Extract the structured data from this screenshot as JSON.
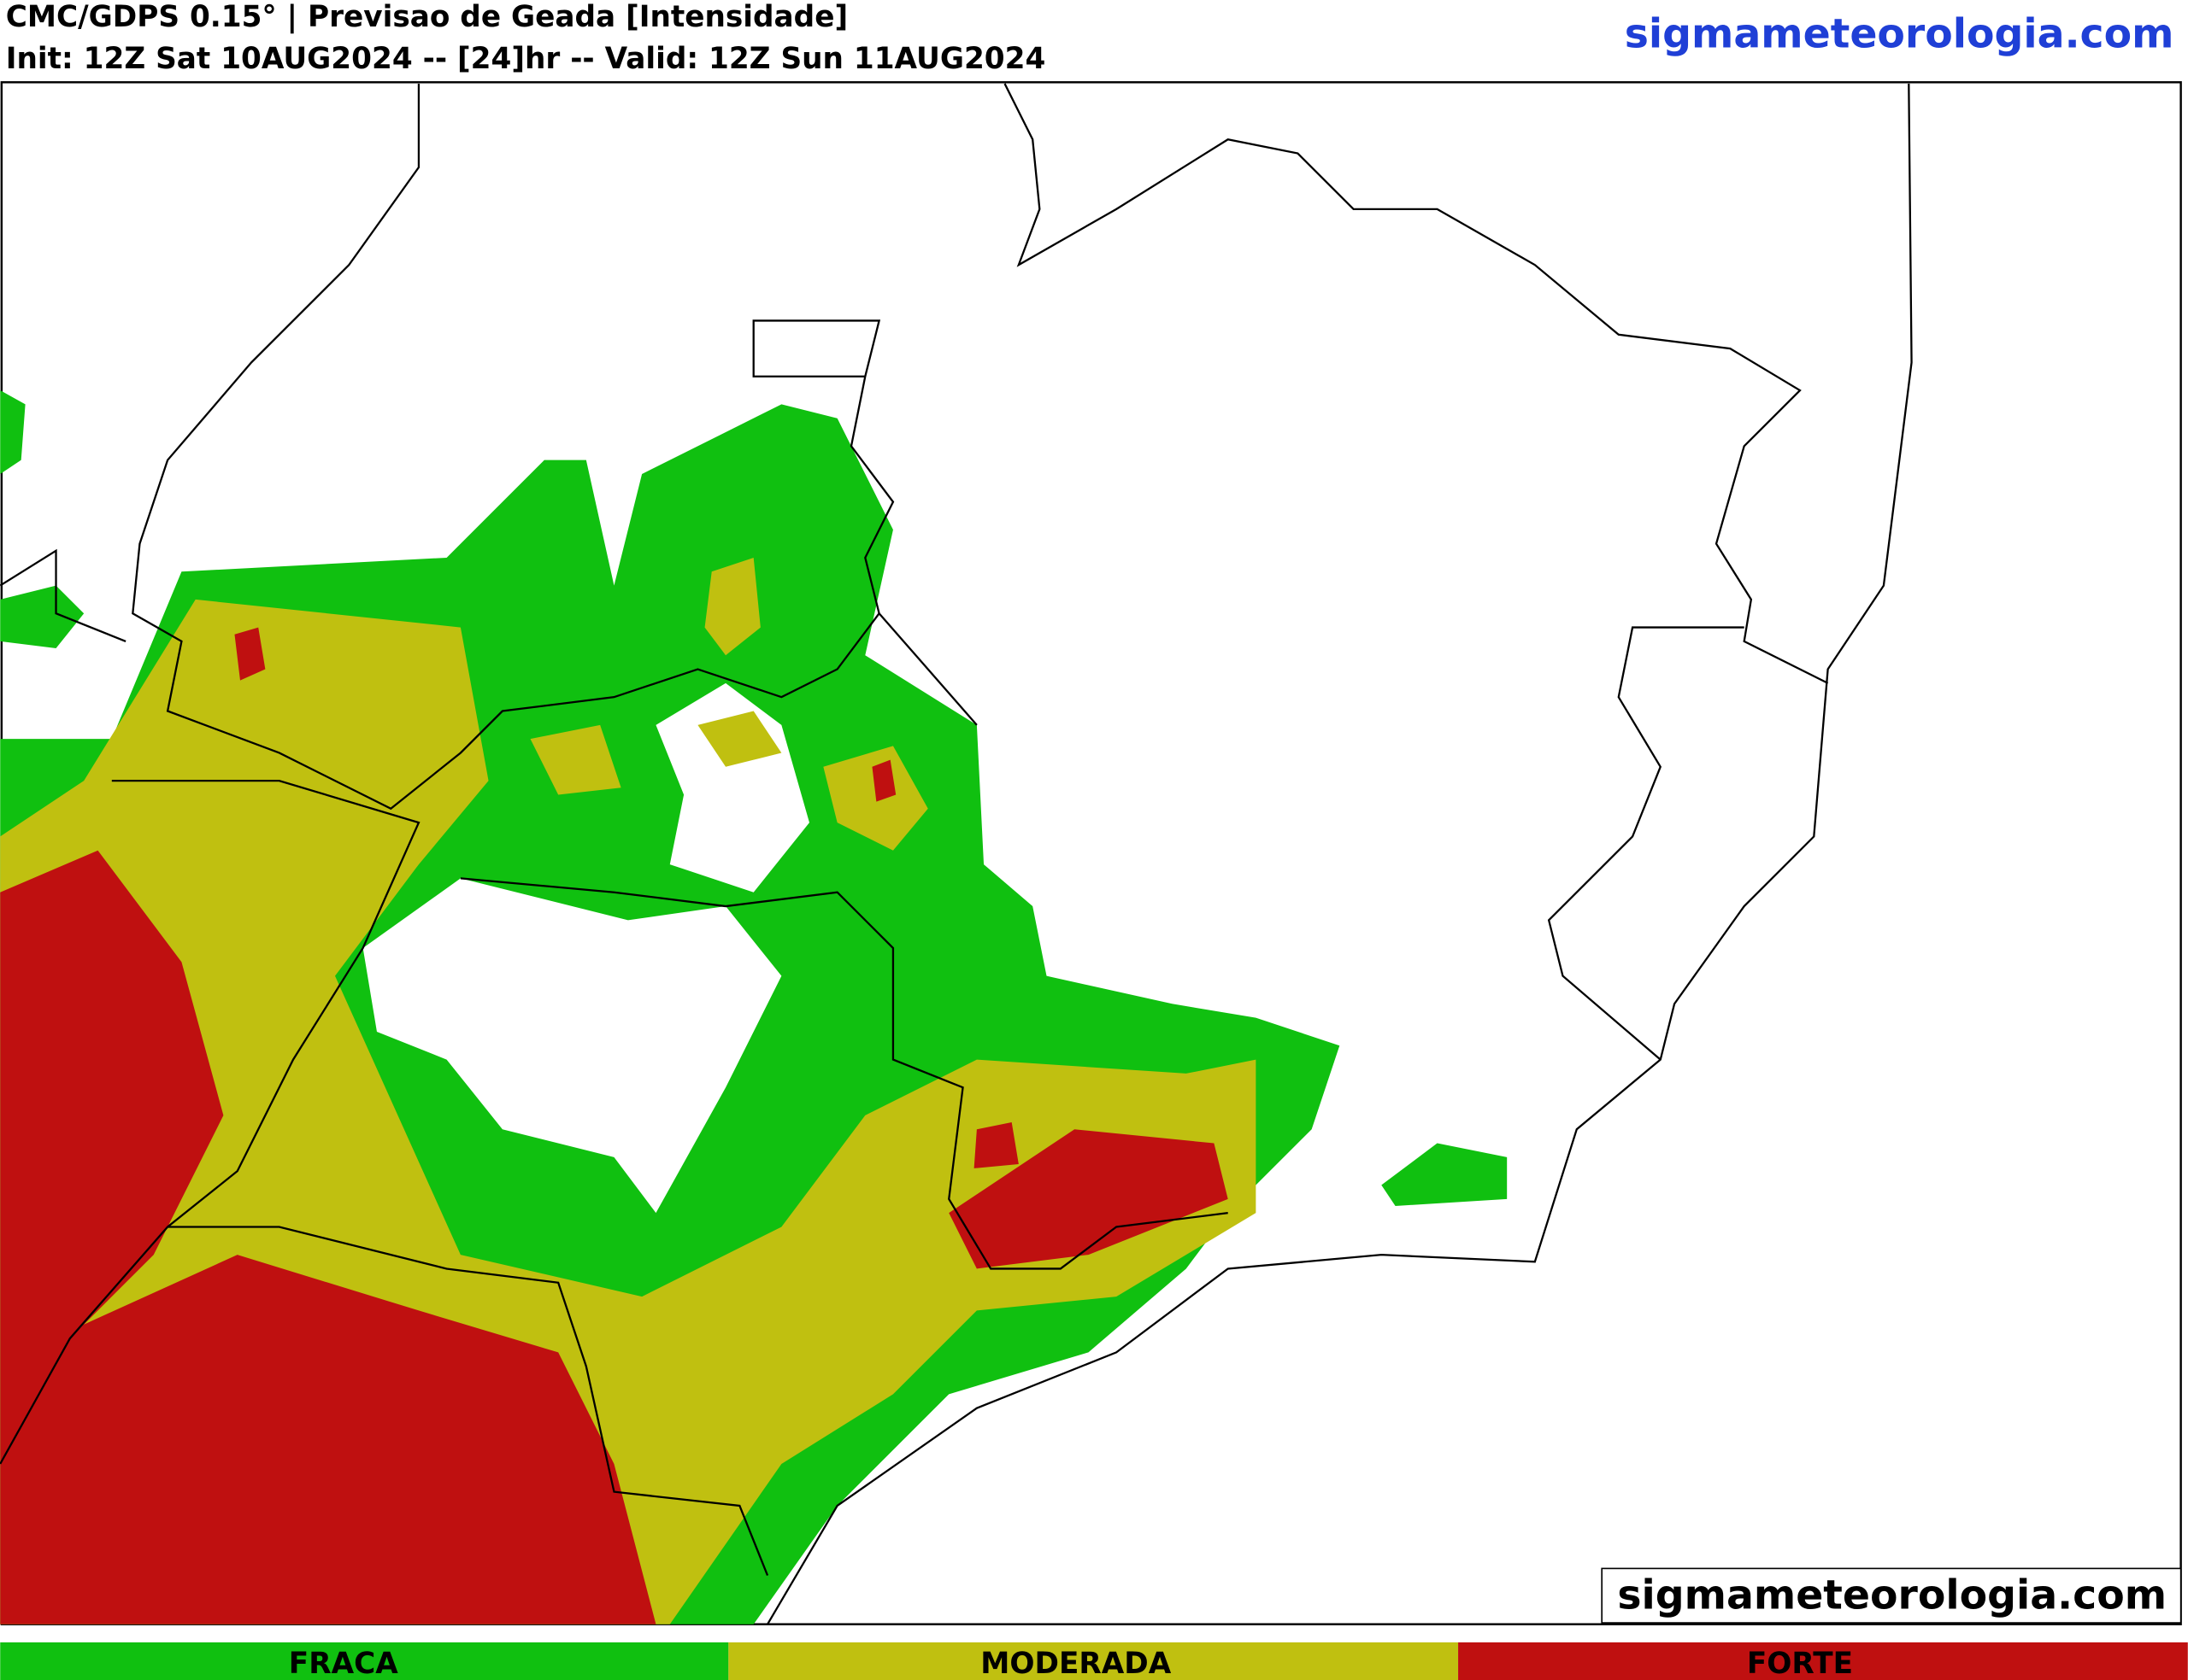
{
  "header": {
    "title": "CMC/GDPS 0.15° | Previsao de Geada [Intensidade]",
    "subtitle": "Init: 12Z Sat 10AUG2024 -- [24]hr -- Valid: 12Z Sun 11AUG2024",
    "site": "sigmameteorologia.com"
  },
  "watermark": "sigmameteorologia.com",
  "legend": [
    "FRACA",
    "MODERADA",
    "FORTE"
  ]
}
